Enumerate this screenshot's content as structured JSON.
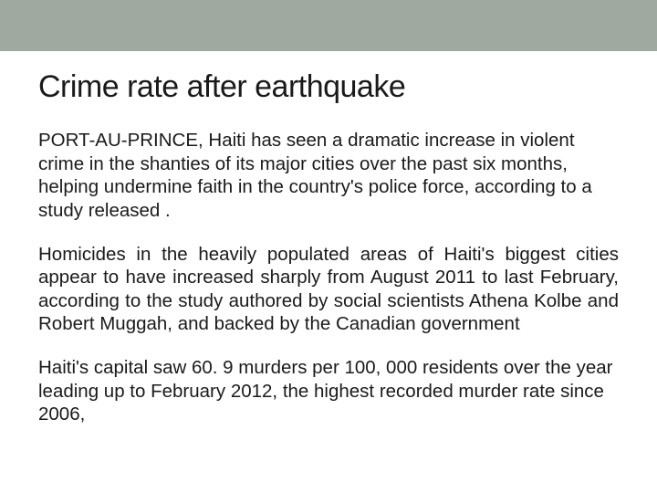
{
  "slide": {
    "title": "Crime rate after earthquake",
    "paragraphs": [
      "PORT-AU-PRINCE, Haiti has seen a dramatic increase in violent crime in the shanties of its major cities over the past six months, helping undermine faith in the country's police force, according to a study released .",
      "Homicides in the heavily populated areas of Haiti's biggest cities appear to have increased sharply from August 2011 to last February, according to the study authored by social scientists Athena Kolbe and Robert Muggah, and backed by the Canadian government",
      "Haiti's capital saw 60. 9 murders per 100, 000 residents over the year leading up to February 2012, the highest recorded murder rate since 2006,"
    ],
    "colors": {
      "top_bar": "#9fa99f",
      "background": "#ffffff",
      "text": "#1a1a1a"
    },
    "typography": {
      "title_fontsize": 34,
      "body_fontsize": 20.5,
      "font_family": "Arial"
    }
  }
}
